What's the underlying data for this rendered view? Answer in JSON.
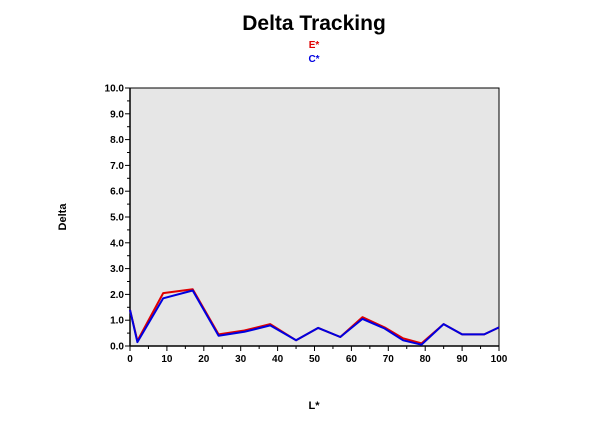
{
  "chart_data": {
    "type": "line",
    "title": "Delta Tracking",
    "xlabel": "L*",
    "ylabel": "Delta",
    "xlim": [
      0,
      100
    ],
    "ylim": [
      0,
      10
    ],
    "x_ticks": [
      "0",
      "10",
      "20",
      "30",
      "40",
      "50",
      "60",
      "70",
      "80",
      "90",
      "100"
    ],
    "y_ticks": [
      "0.0",
      "1.0",
      "2.0",
      "3.0",
      "4.0",
      "5.0",
      "6.0",
      "7.0",
      "8.0",
      "9.0",
      "10.0"
    ],
    "plot_background": "#e6e6e6",
    "grid": false,
    "legend_position": "top-center",
    "series": [
      {
        "name": "E*",
        "color": "#e00000",
        "x": [
          0,
          2,
          9,
          17,
          24,
          31,
          38,
          45,
          51,
          57,
          63,
          69,
          74,
          79,
          85,
          90,
          96,
          100
        ],
        "y": [
          1.4,
          0.2,
          2.05,
          2.2,
          0.45,
          0.6,
          0.85,
          0.22,
          0.7,
          0.35,
          1.12,
          0.72,
          0.3,
          0.1,
          0.85,
          0.45,
          0.45,
          0.72
        ]
      },
      {
        "name": "C*",
        "color": "#0000e0",
        "x": [
          0,
          2,
          9,
          17,
          24,
          31,
          38,
          45,
          51,
          57,
          63,
          69,
          74,
          79,
          85,
          90,
          96,
          100
        ],
        "y": [
          1.4,
          0.15,
          1.85,
          2.15,
          0.4,
          0.55,
          0.8,
          0.22,
          0.7,
          0.35,
          1.05,
          0.68,
          0.22,
          0.05,
          0.85,
          0.45,
          0.45,
          0.72
        ]
      }
    ]
  }
}
